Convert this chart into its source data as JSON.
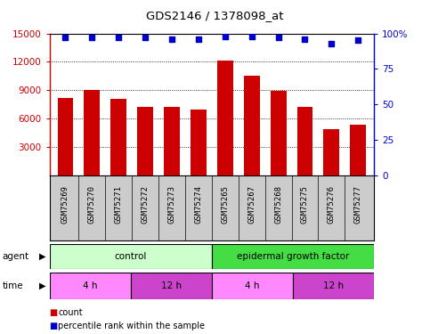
{
  "title": "GDS2146 / 1378098_at",
  "samples": [
    "GSM75269",
    "GSM75270",
    "GSM75271",
    "GSM75272",
    "GSM75273",
    "GSM75274",
    "GSM75265",
    "GSM75267",
    "GSM75268",
    "GSM75275",
    "GSM75276",
    "GSM75277"
  ],
  "bar_values": [
    8200,
    9000,
    8100,
    7200,
    7200,
    7000,
    12100,
    10500,
    8900,
    7200,
    4900,
    5400
  ],
  "percentile_values": [
    97,
    97,
    97,
    97,
    96,
    96,
    98,
    98,
    97,
    96,
    93,
    95
  ],
  "bar_color": "#cc0000",
  "dot_color": "#0000cc",
  "ylim_left": [
    0,
    15000
  ],
  "ylim_right": [
    0,
    100
  ],
  "yticks_left": [
    3000,
    6000,
    9000,
    12000,
    15000
  ],
  "yticks_right": [
    0,
    25,
    50,
    75,
    100
  ],
  "agent_groups": [
    {
      "label": "control",
      "start": 0,
      "end": 6,
      "color": "#ccffcc"
    },
    {
      "label": "epidermal growth factor",
      "start": 6,
      "end": 12,
      "color": "#44dd44"
    }
  ],
  "time_groups": [
    {
      "label": "4 h",
      "start": 0,
      "end": 3,
      "color": "#ff88ff"
    },
    {
      "label": "12 h",
      "start": 3,
      "end": 6,
      "color": "#cc44cc"
    },
    {
      "label": "4 h",
      "start": 6,
      "end": 9,
      "color": "#ff88ff"
    },
    {
      "label": "12 h",
      "start": 9,
      "end": 12,
      "color": "#cc44cc"
    }
  ],
  "legend_count_color": "#cc0000",
  "legend_dot_color": "#0000cc",
  "sample_bg_color": "#cccccc",
  "plot_bg": "#ffffff"
}
